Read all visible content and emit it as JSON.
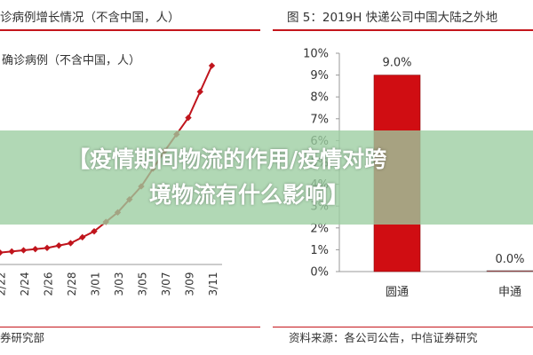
{
  "banner": {
    "line1": "【疫情期间物流的作用/疫情对跨",
    "line2": "境物流有什么影响】"
  },
  "left_panel": {
    "title": "诊病例增长情况（不含中国，人）",
    "legend": "确诊病例（不含中国，人）",
    "source": "券研究部"
  },
  "right_panel": {
    "title": "图 5：2019H 快递公司中国大陆之外地",
    "source": "资料来源：各公司公告，中信证券研究"
  },
  "colors": {
    "accent_red": "#c4161c",
    "line_red": "#c0141c",
    "bar_red": "#d00d12",
    "axis": "#999999"
  },
  "chart_data": [
    {
      "type": "line",
      "title": "诊病例增长情况（不含中国，人）",
      "legend": [
        "确诊病例（不含中国，人）"
      ],
      "x": [
        "2/22",
        "2/24",
        "2/26",
        "2/28",
        "3/01",
        "3/03",
        "3/05",
        "3/07",
        "3/09",
        "3/11"
      ],
      "series": [
        {
          "name": "确诊病例（不含中国，人）",
          "values": [
            0.5,
            0.6,
            0.7,
            0.9,
            1.4,
            2.2,
            3.3,
            4.8,
            6.2,
            8.4
          ]
        }
      ],
      "grid": false
    },
    {
      "type": "bar",
      "title": "图 5：2019H 快递公司中国大陆之外地",
      "categories": [
        "圆通",
        "申通"
      ],
      "values": [
        9.0,
        0.0
      ],
      "data_labels": [
        "9.0%",
        "0.0%"
      ],
      "y_ticks": [
        "0%",
        "1%",
        "2%",
        "3%",
        "4%",
        "5%",
        "6%",
        "7%",
        "8%",
        "9%",
        "10%"
      ],
      "ylim": [
        0,
        10
      ],
      "grid": false
    }
  ]
}
